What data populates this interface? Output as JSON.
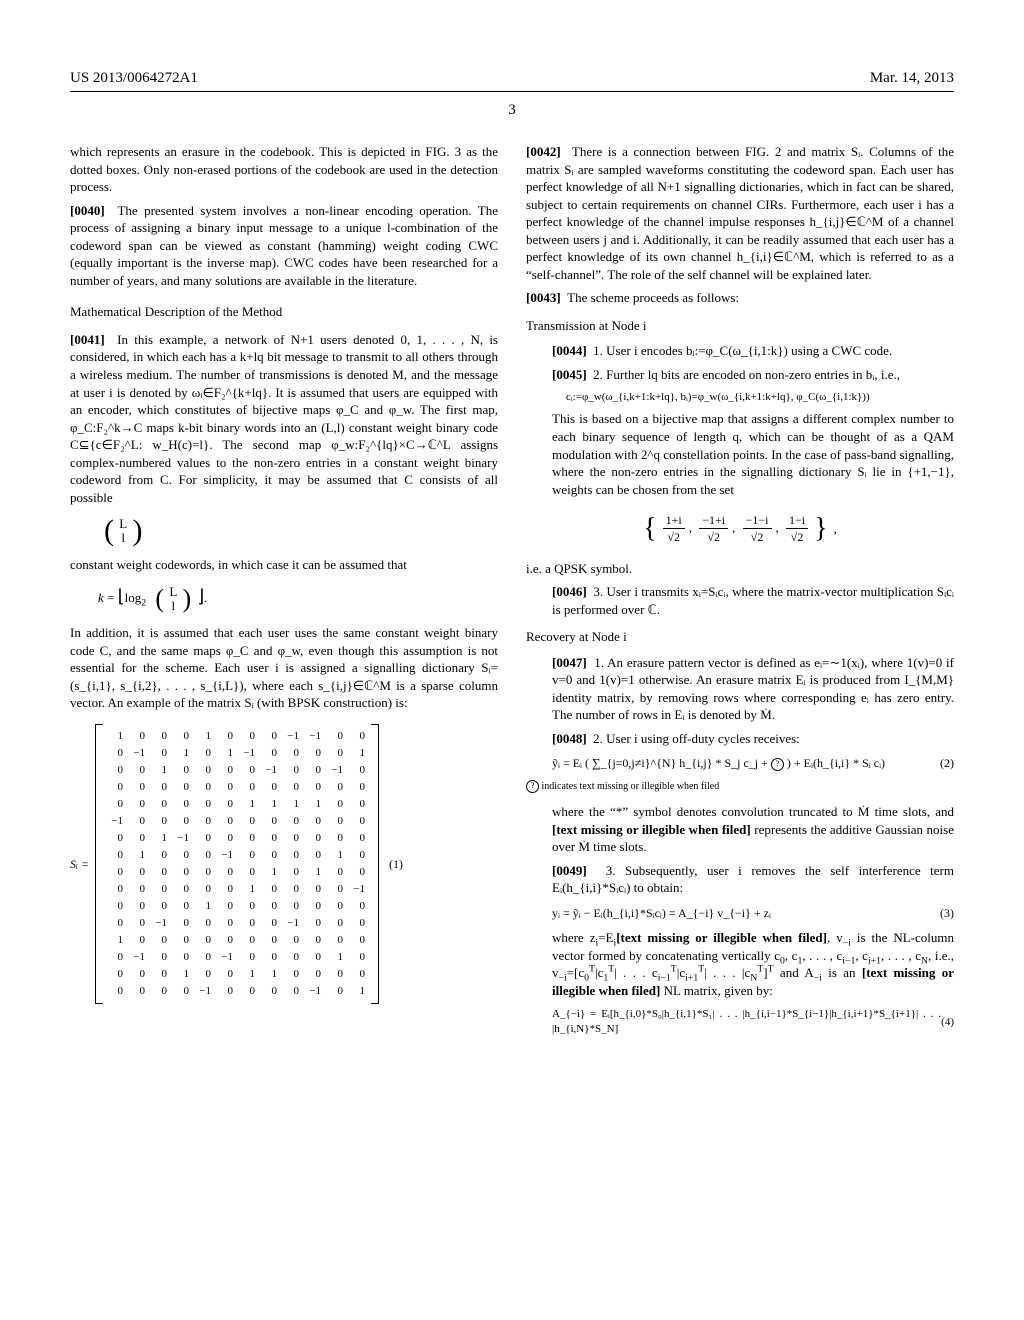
{
  "header": {
    "left": "US 2013/0064272A1",
    "right": "Mar. 14, 2013"
  },
  "page_number": "3",
  "left_column": {
    "p0039_cont": "which represents an erasure in the codebook. This is depicted in FIG. 3 as the dotted boxes. Only non-erased portions of the codebook are used in the detection process.",
    "p0040_num": "[0040]",
    "p0040": "The presented system involves a non-linear encoding operation. The process of assigning a binary input message to a unique l-combination of the codeword span can be viewed as constant (hamming) weight coding CWC (equally important is the inverse map). CWC codes have been researched for a number of years, and many solutions are available in the literature.",
    "math_desc_heading": "Mathematical Description of the Method",
    "p0041_num": "[0041]",
    "p0041": "In this example, a network of N+1 users denoted 0, 1, . . . , N, is considered, in which each has a k+lq bit message to transmit to all others through a wireless medium. The number of transmissions is denoted M, and the message at user i is denoted by ωᵢ∈F₂^{k+lq}. It is assumed that users are equipped with an encoder, which constitutes of bijective maps φ_C and φ_w. The first map, φ_C:F₂^k→C maps k-bit binary words into an (L,l) constant weight binary code C⊆{c∈F₂^L: w_H(c)=l}. The second map φ_w:F₂^{lq}×C→ℂ^L assigns complex-numbered values to the non-zero entries in a constant weight binary codeword from C. For simplicity, it may be assumed that C consists of all possible",
    "binom_top": "L",
    "binom_bot": "l",
    "after_binom": "constant weight codewords, in which case it can be assumed that",
    "k_formula": "k = ⌊log₂ ( L choose l )⌋.",
    "p0041_cont": "In addition, it is assumed that each user uses the same constant weight binary code C, and the same maps φ_C and φ_w, even though this assumption is not essential for the scheme. Each user i is assigned a signalling dictionary Sᵢ=(s_{i,1}, s_{i,2}, . . . , s_{i,L}), where each s_{i,j}∈ℂ^M is a sparse column vector. An example of the matrix Sᵢ (with BPSK construction) is:",
    "matrix_label": "Sᵢ =",
    "matrix_eqnum": "(1)",
    "matrix": [
      [
        1,
        0,
        0,
        0,
        1,
        0,
        0,
        0,
        -1,
        -1,
        0,
        0
      ],
      [
        0,
        -1,
        0,
        1,
        0,
        1,
        -1,
        0,
        0,
        0,
        0,
        1
      ],
      [
        0,
        0,
        1,
        0,
        0,
        0,
        0,
        -1,
        0,
        0,
        -1,
        0
      ],
      [
        0,
        0,
        0,
        0,
        0,
        0,
        0,
        0,
        0,
        0,
        0,
        0
      ],
      [
        0,
        0,
        0,
        0,
        0,
        0,
        1,
        1,
        1,
        1,
        0,
        0
      ],
      [
        -1,
        0,
        0,
        0,
        0,
        0,
        0,
        0,
        0,
        0,
        0,
        0
      ],
      [
        0,
        0,
        1,
        -1,
        0,
        0,
        0,
        0,
        0,
        0,
        0,
        0
      ],
      [
        0,
        1,
        0,
        0,
        0,
        -1,
        0,
        0,
        0,
        0,
        1,
        0
      ],
      [
        0,
        0,
        0,
        0,
        0,
        0,
        0,
        1,
        0,
        1,
        0,
        0
      ],
      [
        0,
        0,
        0,
        0,
        0,
        0,
        1,
        0,
        0,
        0,
        0,
        -1
      ],
      [
        0,
        0,
        0,
        0,
        1,
        0,
        0,
        0,
        0,
        0,
        0,
        0
      ],
      [
        0,
        0,
        -1,
        0,
        0,
        0,
        0,
        0,
        -1,
        0,
        0,
        0
      ],
      [
        1,
        0,
        0,
        0,
        0,
        0,
        0,
        0,
        0,
        0,
        0,
        0
      ],
      [
        0,
        -1,
        0,
        0,
        0,
        -1,
        0,
        0,
        0,
        0,
        1,
        0
      ],
      [
        0,
        0,
        0,
        1,
        0,
        0,
        1,
        1,
        0,
        0,
        0,
        0
      ],
      [
        0,
        0,
        0,
        0,
        -1,
        0,
        0,
        0,
        0,
        -1,
        0,
        1
      ]
    ]
  },
  "right_column": {
    "p0042_num": "[0042]",
    "p0042": "There is a connection between FIG. 2 and matrix Sᵢ. Columns of the matrix Sᵢ are sampled waveforms constituting the codeword span. Each user has perfect knowledge of all N+1 signalling dictionaries, which in fact can be shared, subject to certain requirements on channel CIRs. Furthermore, each user i has a perfect knowledge of the channel impulse responses h_{i,j}∈ℂ^M of a channel between users j and i. Additionally, it can be readily assumed that each user has a perfect knowledge of its own channel h_{i,i}∈ℂ^M, which is referred to as a “self-channel”. The role of the self channel will be explained later.",
    "p0043_num": "[0043]",
    "p0043": "The scheme proceeds as follows:",
    "tx_heading": "Transmission at Node i",
    "p0044_num": "[0044]",
    "p0044": "1. User i encodes bᵢ:=φ_C(ω_{i,1:k}) using a CWC code.",
    "p0045_num": "[0045]",
    "p0045": "2. Further lq bits are encoded on non-zero entries in bᵢ, i.e.,",
    "ci_formula": "cᵢ:=φ_w(ω_{i,k+1:k+lq}, bᵢ)=φ_w(ω_{i,k+1:k+lq}, φ_C(ω_{i,1:k}))",
    "p0045_cont": "This is based on a bijective map that assigns a different complex number to each binary sequence of length q, which can be thought of as a QAM modulation with 2^q constellation points. In the case of pass-band signalling, where the non-zero entries in the signalling dictionary Sᵢ lie in {+1,−1}, weights can be chosen from the set",
    "qpsk_set": {
      "items": [
        "1+i",
        "−1+i",
        "−1−i",
        "1−i"
      ],
      "den": "√2"
    },
    "qpsk_text": "i.e. a QPSK symbol.",
    "p0046_num": "[0046]",
    "p0046": "3. User i transmits xᵢ=Sᵢcᵢ, where the matrix-vector multiplication Sᵢcᵢ is performed over ℂ.",
    "rec_heading": "Recovery at Node i",
    "p0047_num": "[0047]",
    "p0047": "1. An erasure pattern vector is defined as eᵢ=∼1(xᵢ), where 1(v)=0 if v=0 and 1(v)=1 otherwise. An erasure matrix Eᵢ is produced from I_{M,M} identity matrix, by removing rows where corresponding eᵢ has zero entry. The number of rows in Eᵢ is denoted by Ṁ.",
    "p0048_num": "[0048]",
    "p0048": "2. User i using off-duty cycles receives:",
    "eq2_left": "ỹᵢ = Eᵢ ( ∑_{j=0,j≠i}^{N} h_{i,j} * S_j c_j + ",
    "eq2_right": " ) + Eᵢ(h_{i,i} * Sᵢ cᵢ)",
    "eq2_num": "(2)",
    "illegible_note": " indicates text missing or illegible when filed",
    "p0048_cont": "where the “*” symbol denotes convolution truncated to Ṁ time slots, and [text missing or illegible when filed] represents the additive Gaussian noise over Ṁ time slots.",
    "p0049_num": "[0049]",
    "p0049": "3. Subsequently, user i removes the self interference term Eᵢ(h_{i,i}*Sᵢcᵢ) to obtain:",
    "eq3": "yᵢ = ỹᵢ − Eᵢ(h_{i,i}*Sᵢcᵢ) = A_{−i} v_{−i} + zᵢ",
    "eq3_num": "(3)",
    "p0049_cont": "where zᵢ=Eᵢ[text missing or illegible when filed], v_{−i} is the NL-column vector formed by concatenating vertically c₀, c₁, . . . , c_{i−1}, c_{i+1}, . . . , c_N, i.e., v_{−i}=[c₀^T|c₁^T| . . . c_{i−1}^T|c_{i+1}^T| . . . |c_N^T]^T and A_{−i} is an [text missing or illegible when filed] NL matrix, given by:",
    "eq4": "A_{−i} = Eᵢ[h_{i,0}*S₀|h_{i,1}*S₁| . . . |h_{i,i−1}*S_{i−1}|h_{i,i+1}*S_{i+1}| . . . |h_{i,N}*S_N]",
    "eq4_num": "(4)"
  }
}
